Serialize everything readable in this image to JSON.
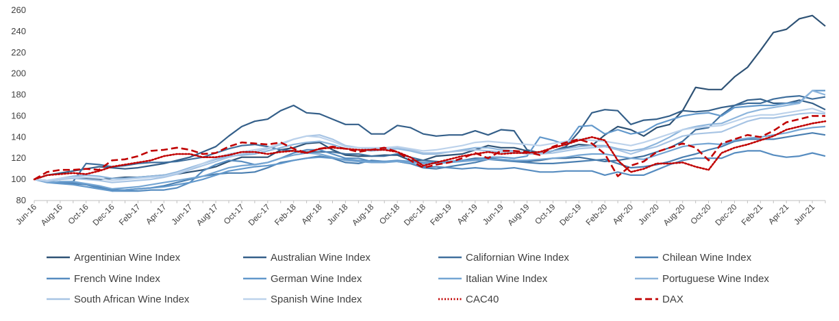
{
  "chart_data": {
    "type": "line",
    "title": "",
    "xlabel": "",
    "ylabel": "",
    "ylim": [
      80,
      260
    ],
    "yticks": [
      80,
      100,
      120,
      140,
      160,
      180,
      200,
      220,
      240,
      260
    ],
    "grid": false,
    "legend_position": "bottom",
    "x": [
      "Jun-16",
      "Jul-16",
      "Aug-16",
      "Sep-16",
      "Oct-16",
      "Nov-16",
      "Dec-16",
      "Jan-17",
      "Feb-17",
      "Mar-17",
      "Apr-17",
      "May-17",
      "Jun-17",
      "Jul-17",
      "Aug-17",
      "Sep-17",
      "Oct-17",
      "Nov-17",
      "Dec-17",
      "Jan-18",
      "Feb-18",
      "Mar-18",
      "Apr-18",
      "May-18",
      "Jun-18",
      "Jul-18",
      "Aug-18",
      "Sep-18",
      "Oct-18",
      "Nov-18",
      "Dec-18",
      "Jan-19",
      "Feb-19",
      "Mar-19",
      "Apr-19",
      "May-19",
      "Jun-19",
      "Jul-19",
      "Aug-19",
      "Sep-19",
      "Oct-19",
      "Nov-19",
      "Dec-19",
      "Jan-20",
      "Feb-20",
      "Mar-20",
      "Apr-20",
      "May-20",
      "Jun-20",
      "Jul-20",
      "Aug-20",
      "Sep-20",
      "Oct-20",
      "Nov-20",
      "Dec-20",
      "Jan-21",
      "Feb-21",
      "Mar-21",
      "Apr-21",
      "May-21",
      "Jun-21",
      "Jul-21"
    ],
    "x_tick_labels": [
      "Jun-16",
      "Aug-16",
      "Oct-16",
      "Dec-16",
      "Feb-17",
      "Apr-17",
      "Jun-17",
      "Aug-17",
      "Oct-17",
      "Dec-17",
      "Feb-18",
      "Apr-18",
      "Jun-18",
      "Aug-18",
      "Oct-18",
      "Dec-18",
      "Feb-19",
      "Apr-19",
      "Jun-19",
      "Aug-19",
      "Oct-19",
      "Dec-19",
      "Feb-20",
      "Apr-20",
      "Jun-20",
      "Aug-20",
      "Oct-20",
      "Dec-20",
      "Feb-21",
      "Apr-21",
      "Jun-21"
    ],
    "series": [
      {
        "name": "Argentinian Wine Index",
        "color": "#2e5275",
        "dash": "solid",
        "values": [
          100,
          99,
          100,
          102,
          101,
          100,
          101,
          102,
          102,
          103,
          104,
          105,
          107,
          109,
          112,
          117,
          121,
          121,
          121,
          128,
          130,
          134,
          135,
          128,
          123,
          122,
          122,
          123,
          123,
          118,
          118,
          122,
          123,
          124,
          128,
          132,
          130,
          130,
          127,
          124,
          127,
          130,
          133,
          132,
          142,
          150,
          147,
          141,
          149,
          152,
          165,
          187,
          185,
          185,
          197,
          206,
          222,
          239,
          242,
          252,
          255,
          245
        ]
      },
      {
        "name": "Australian Wine Index",
        "color": "#345f89",
        "dash": "solid",
        "values": [
          100,
          104,
          106,
          108,
          110,
          112,
          111,
          110,
          111,
          113,
          115,
          118,
          121,
          126,
          131,
          141,
          150,
          155,
          157,
          165,
          170,
          163,
          162,
          157,
          152,
          152,
          143,
          143,
          151,
          149,
          143,
          141,
          142,
          142,
          146,
          142,
          147,
          146,
          128,
          125,
          127,
          131,
          145,
          163,
          166,
          165,
          152,
          156,
          157,
          160,
          165,
          164,
          165,
          168,
          170,
          175,
          176,
          172,
          172,
          175,
          172,
          166
        ]
      },
      {
        "name": "Californian Wine Index",
        "color": "#3f6f9d",
        "dash": "solid",
        "values": [
          100,
          98,
          97,
          98,
          115,
          114,
          112,
          113,
          115,
          116,
          116,
          117,
          119,
          121,
          125,
          129,
          132,
          133,
          131,
          128,
          127,
          126,
          126,
          126,
          124,
          124,
          122,
          122,
          124,
          121,
          118,
          117,
          116,
          118,
          120,
          120,
          119,
          118,
          117,
          118,
          120,
          120,
          121,
          119,
          117,
          118,
          120,
          122,
          126,
          130,
          136,
          147,
          149,
          161,
          170,
          172,
          172,
          176,
          178,
          179,
          176,
          178
        ]
      },
      {
        "name": "Chilean Wine Index",
        "color": "#4a7fb1",
        "dash": "solid",
        "values": [
          100,
          98,
          97,
          96,
          95,
          93,
          90,
          90,
          91,
          92,
          94,
          97,
          100,
          103,
          105,
          106,
          106,
          107,
          111,
          116,
          118,
          120,
          122,
          120,
          116,
          115,
          118,
          117,
          117,
          115,
          111,
          110,
          112,
          114,
          116,
          119,
          118,
          117,
          116,
          115,
          115,
          116,
          117,
          118,
          119,
          115,
          111,
          112,
          114,
          117,
          121,
          124,
          128,
          131,
          136,
          138,
          138,
          138,
          140,
          142,
          144,
          142
        ]
      },
      {
        "name": "French Wine Index",
        "color": "#568cc0",
        "dash": "solid",
        "values": [
          100,
          98,
          97,
          97,
          95,
          92,
          89,
          89,
          89,
          90,
          90,
          92,
          97,
          108,
          114,
          118,
          117,
          114,
          116,
          120,
          125,
          128,
          128,
          124,
          120,
          120,
          117,
          117,
          117,
          115,
          112,
          112,
          111,
          110,
          111,
          110,
          110,
          111,
          109,
          107,
          107,
          108,
          108,
          108,
          104,
          107,
          104,
          104,
          109,
          114,
          118,
          120,
          120,
          120,
          125,
          127,
          127,
          123,
          121,
          122,
          125,
          122
        ]
      },
      {
        "name": "German Wine Index",
        "color": "#6298cb",
        "dash": "solid",
        "values": [
          100,
          97,
          96,
          95,
          93,
          91,
          89,
          90,
          91,
          92,
          93,
          95,
          97,
          100,
          104,
          108,
          110,
          112,
          113,
          115,
          118,
          120,
          121,
          120,
          119,
          118,
          117,
          117,
          118,
          117,
          116,
          116,
          117,
          118,
          119,
          121,
          121,
          120,
          122,
          140,
          137,
          133,
          150,
          151,
          143,
          147,
          143,
          145,
          152,
          156,
          160,
          162,
          163,
          160,
          168,
          169,
          170,
          170,
          172,
          173,
          184,
          184
        ]
      },
      {
        "name": "Italian Wine Index",
        "color": "#74a5d3",
        "dash": "solid",
        "values": [
          100,
          97,
          98,
          98,
          96,
          94,
          91,
          92,
          93,
          95,
          97,
          99,
          101,
          103,
          107,
          111,
          113,
          114,
          116,
          120,
          123,
          125,
          124,
          121,
          118,
          117,
          116,
          116,
          117,
          116,
          115,
          115,
          116,
          117,
          118,
          119,
          119,
          118,
          118,
          119,
          120,
          121,
          123,
          124,
          124,
          122,
          120,
          119,
          123,
          127,
          131,
          133,
          134,
          133,
          137,
          139,
          140,
          142,
          144,
          147,
          149,
          150
        ]
      },
      {
        "name": "Portuguese Wine Index",
        "color": "#8db5dc",
        "dash": "solid",
        "values": [
          100,
          99,
          101,
          103,
          104,
          103,
          101,
          101,
          102,
          103,
          104,
          107,
          111,
          115,
          119,
          122,
          123,
          124,
          127,
          130,
          133,
          135,
          136,
          133,
          129,
          128,
          127,
          128,
          129,
          127,
          124,
          124,
          126,
          128,
          130,
          130,
          128,
          127,
          125,
          125,
          127,
          129,
          131,
          132,
          132,
          129,
          127,
          129,
          134,
          140,
          147,
          150,
          152,
          153,
          158,
          163,
          166,
          168,
          170,
          172,
          184,
          180
        ]
      },
      {
        "name": "South African Wine Index",
        "color": "#a7c4e4",
        "dash": "solid",
        "values": [
          100,
          98,
          100,
          101,
          100,
          99,
          97,
          98,
          99,
          100,
          102,
          105,
          109,
          113,
          117,
          121,
          124,
          126,
          129,
          133,
          138,
          141,
          142,
          138,
          132,
          130,
          129,
          129,
          130,
          128,
          125,
          125,
          126,
          127,
          128,
          127,
          126,
          126,
          124,
          124,
          125,
          127,
          129,
          130,
          131,
          128,
          124,
          128,
          131,
          136,
          141,
          143,
          144,
          145,
          150,
          155,
          158,
          158,
          160,
          162,
          163,
          162
        ]
      },
      {
        "name": "Spanish Wine Index",
        "color": "#bcd2eb",
        "dash": "solid",
        "values": [
          100,
          99,
          101,
          102,
          102,
          101,
          99,
          100,
          101,
          102,
          103,
          106,
          110,
          115,
          120,
          124,
          126,
          128,
          130,
          134,
          138,
          141,
          140,
          136,
          131,
          130,
          130,
          130,
          131,
          129,
          127,
          128,
          130,
          132,
          135,
          136,
          135,
          134,
          133,
          132,
          134,
          136,
          138,
          137,
          136,
          134,
          132,
          135,
          139,
          143,
          147,
          149,
          150,
          151,
          155,
          159,
          161,
          161,
          163,
          165,
          167,
          163
        ]
      },
      {
        "name": "CAC40",
        "color": "#c00000",
        "dash": "dotted",
        "values": [
          100,
          104,
          105,
          106,
          105,
          108,
          112,
          114,
          116,
          118,
          122,
          124,
          124,
          121,
          121,
          123,
          126,
          126,
          124,
          126,
          127,
          125,
          129,
          130,
          129,
          128,
          128,
          128,
          126,
          121,
          113,
          116,
          119,
          122,
          124,
          126,
          124,
          125,
          125,
          126,
          130,
          133,
          137,
          140,
          137,
          118,
          107,
          110,
          115,
          115,
          116,
          112,
          109,
          125,
          130,
          133,
          137,
          141,
          147,
          150,
          153,
          155
        ]
      },
      {
        "name": "DAX",
        "color": "#c00000",
        "dash": "dashed",
        "values": [
          100,
          107,
          109,
          109,
          110,
          109,
          118,
          119,
          122,
          127,
          128,
          130,
          128,
          124,
          125,
          131,
          135,
          134,
          133,
          135,
          129,
          125,
          129,
          131,
          129,
          126,
          128,
          130,
          126,
          118,
          111,
          114,
          116,
          120,
          125,
          120,
          127,
          127,
          126,
          123,
          131,
          135,
          138,
          134,
          124,
          103,
          113,
          117,
          126,
          130,
          134,
          130,
          118,
          134,
          138,
          142,
          140,
          146,
          154,
          157,
          160,
          160
        ]
      }
    ]
  }
}
